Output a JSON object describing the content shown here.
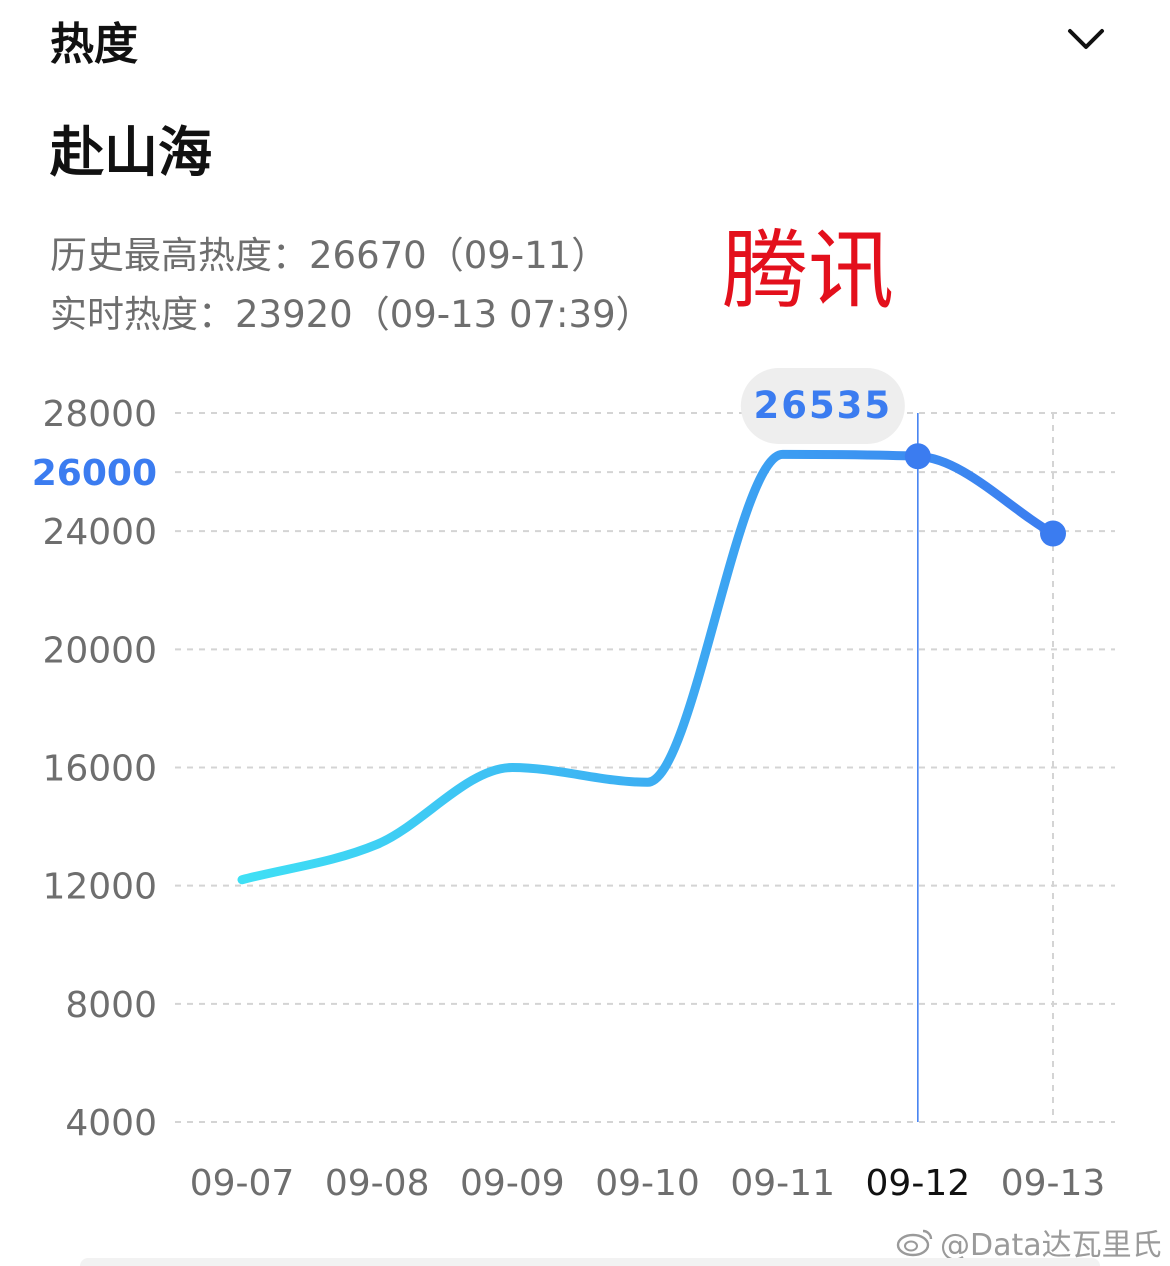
{
  "header": {
    "title": "热度",
    "collapse_icon": "chevron-down-icon"
  },
  "topic": {
    "title": "赴山海",
    "peak_label": "历史最高热度：26670（09-11）",
    "live_label": "实时热度：23920（09-13 07:39）"
  },
  "overlay_stamp": "腾讯",
  "watermark": {
    "text": "@Data达瓦里氏",
    "icon": "weibo-icon"
  },
  "colors": {
    "accent": "#3b7cf0",
    "line_start": "#3fe0f5",
    "line_end": "#3b7cf0",
    "stamp": "#e3101c",
    "axis_text": "#6e6e6e",
    "grid": "#d4d4d4"
  },
  "chart_data": {
    "type": "line",
    "x": [
      "09-07",
      "09-08",
      "09-09",
      "09-10",
      "09-11",
      "09-12",
      "09-13"
    ],
    "series": [
      {
        "values": [
          12200,
          13400,
          16000,
          15500,
          26600,
          26535,
          23920
        ]
      }
    ],
    "y_ticks": [
      4000,
      8000,
      12000,
      16000,
      20000,
      24000,
      26000,
      28000
    ],
    "highlighted_tick": 26000,
    "ylim": [
      4000,
      28000
    ],
    "selected_index": 5,
    "selected_value_label": "26535",
    "grid": true
  }
}
